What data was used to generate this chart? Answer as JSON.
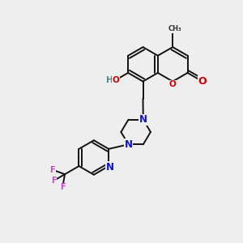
{
  "bg_color": "#eeeeee",
  "bond_color": "#111111",
  "bond_width": 1.4,
  "atom_colors": {
    "O": "#cc0000",
    "N": "#1111cc",
    "F": "#cc44cc",
    "H": "#4a8888"
  },
  "font_size": 8.5
}
